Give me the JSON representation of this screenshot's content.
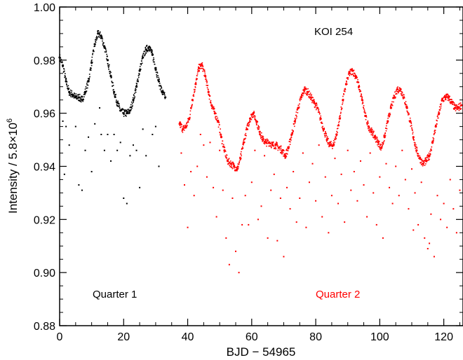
{
  "chart_data": {
    "type": "scatter",
    "xlabel": "BJD − 54965",
    "ylabel": "Intensity / 5.8×10",
    "ylabel_exponent": "6",
    "xlim": [
      0,
      126
    ],
    "ylim": [
      0.88,
      1.0
    ],
    "x_ticks": [
      0,
      20,
      40,
      60,
      80,
      100,
      120
    ],
    "x_tick_labels": [
      "0",
      "20",
      "40",
      "60",
      "80",
      "100",
      "120"
    ],
    "y_ticks": [
      0.88,
      0.9,
      0.92,
      0.94,
      0.96,
      0.98,
      1.0
    ],
    "y_tick_labels": [
      "0.88",
      "0.90",
      "0.92",
      "0.94",
      "0.96",
      "0.98",
      "1.00"
    ],
    "x_minor_step": 5,
    "y_minor_step": 0.005,
    "grid": false,
    "annotations": {
      "object": "KOI 254",
      "quarter1": "Quarter 1",
      "quarter2": "Quarter 2"
    },
    "series": [
      {
        "color": "#000000",
        "points": [
          [
            0.0,
            0.981
          ],
          [
            1.0,
            0.978
          ],
          [
            2.0,
            0.972
          ],
          [
            3.0,
            0.968
          ],
          [
            4.0,
            0.967
          ],
          [
            5.0,
            0.966
          ],
          [
            6.0,
            0.966
          ],
          [
            7.0,
            0.965
          ],
          [
            8.0,
            0.968
          ],
          [
            9.0,
            0.972
          ],
          [
            10.0,
            0.979
          ],
          [
            11.0,
            0.986
          ],
          [
            12.0,
            0.99
          ],
          [
            13.0,
            0.989
          ],
          [
            14.0,
            0.985
          ],
          [
            15.0,
            0.98
          ],
          [
            16.0,
            0.974
          ],
          [
            17.0,
            0.968
          ],
          [
            18.0,
            0.964
          ],
          [
            19.0,
            0.961
          ],
          [
            20.0,
            0.96
          ],
          [
            21.0,
            0.96
          ],
          [
            22.0,
            0.961
          ],
          [
            23.0,
            0.965
          ],
          [
            24.0,
            0.97
          ],
          [
            25.0,
            0.976
          ],
          [
            26.0,
            0.981
          ],
          [
            27.0,
            0.984
          ],
          [
            28.0,
            0.985
          ],
          [
            29.0,
            0.982
          ],
          [
            30.0,
            0.977
          ],
          [
            31.0,
            0.972
          ],
          [
            32.0,
            0.968
          ],
          [
            33.0,
            0.966
          ]
        ],
        "outliers": [
          [
            1,
            0.957
          ],
          [
            2,
            0.955
          ],
          [
            3,
            0.948
          ],
          [
            5,
            0.955
          ],
          [
            6,
            0.933
          ],
          [
            7,
            0.931
          ],
          [
            8,
            0.946
          ],
          [
            9,
            0.951
          ],
          [
            10,
            0.938
          ],
          [
            11,
            0.956
          ],
          [
            13,
            0.952
          ],
          [
            14,
            0.946
          ],
          [
            15,
            0.952
          ],
          [
            16,
            0.942
          ],
          [
            17,
            0.952
          ],
          [
            18,
            0.946
          ],
          [
            19,
            0.949
          ],
          [
            20,
            0.928
          ],
          [
            21,
            0.926
          ],
          [
            22,
            0.944
          ],
          [
            23,
            0.948
          ],
          [
            24,
            0.946
          ],
          [
            25,
            0.932
          ],
          [
            26,
            0.954
          ],
          [
            27,
            0.944
          ],
          [
            29,
            0.952
          ],
          [
            30,
            0.955
          ],
          [
            31,
            0.94
          ],
          [
            1.5,
            0.937
          ],
          [
            12.5,
            0.962
          ]
        ]
      },
      {
        "color": "#ff0000",
        "points": [
          [
            37.5,
            0.956
          ],
          [
            38.5,
            0.954
          ],
          [
            39.5,
            0.955
          ],
          [
            40.5,
            0.958
          ],
          [
            41.5,
            0.965
          ],
          [
            42.5,
            0.971
          ],
          [
            43.5,
            0.977
          ],
          [
            44.5,
            0.978
          ],
          [
            45.5,
            0.974
          ],
          [
            46.5,
            0.968
          ],
          [
            47.5,
            0.963
          ],
          [
            48.5,
            0.96
          ],
          [
            49.5,
            0.957
          ],
          [
            50.5,
            0.951
          ],
          [
            51.5,
            0.946
          ],
          [
            52.5,
            0.942
          ],
          [
            53.5,
            0.941
          ],
          [
            54.5,
            0.94
          ],
          [
            55.5,
            0.939
          ],
          [
            56.5,
            0.943
          ],
          [
            57.5,
            0.949
          ],
          [
            58.5,
            0.954
          ],
          [
            59.5,
            0.958
          ],
          [
            60.5,
            0.96
          ],
          [
            61.5,
            0.957
          ],
          [
            62.5,
            0.953
          ],
          [
            63.5,
            0.95
          ],
          [
            64.5,
            0.949
          ],
          [
            65.5,
            0.949
          ],
          [
            66.5,
            0.948
          ],
          [
            67.5,
            0.948
          ],
          [
            68.5,
            0.947
          ],
          [
            69.5,
            0.946
          ],
          [
            70.5,
            0.944
          ],
          [
            71.5,
            0.947
          ],
          [
            72.5,
            0.952
          ],
          [
            73.5,
            0.957
          ],
          [
            74.5,
            0.962
          ],
          [
            75.5,
            0.966
          ],
          [
            76.5,
            0.969
          ],
          [
            77.5,
            0.968
          ],
          [
            78.5,
            0.966
          ],
          [
            79.5,
            0.964
          ],
          [
            80.5,
            0.962
          ],
          [
            81.5,
            0.958
          ],
          [
            82.5,
            0.954
          ],
          [
            83.5,
            0.95
          ],
          [
            84.5,
            0.948
          ],
          [
            85.5,
            0.948
          ],
          [
            86.5,
            0.952
          ],
          [
            87.5,
            0.958
          ],
          [
            88.5,
            0.965
          ],
          [
            89.5,
            0.971
          ],
          [
            90.5,
            0.975
          ],
          [
            91.5,
            0.976
          ],
          [
            92.5,
            0.974
          ],
          [
            93.5,
            0.97
          ],
          [
            94.5,
            0.965
          ],
          [
            95.5,
            0.959
          ],
          [
            96.5,
            0.955
          ],
          [
            97.5,
            0.953
          ],
          [
            98.5,
            0.951
          ],
          [
            99.5,
            0.949
          ],
          [
            100.5,
            0.947
          ],
          [
            101.5,
            0.951
          ],
          [
            102.5,
            0.957
          ],
          [
            103.5,
            0.962
          ],
          [
            104.5,
            0.966
          ],
          [
            105.5,
            0.969
          ],
          [
            106.5,
            0.969
          ],
          [
            107.5,
            0.966
          ],
          [
            108.5,
            0.962
          ],
          [
            109.5,
            0.957
          ],
          [
            110.5,
            0.951
          ],
          [
            111.5,
            0.946
          ],
          [
            112.5,
            0.943
          ],
          [
            113.5,
            0.941
          ],
          [
            114.5,
            0.942
          ],
          [
            115.5,
            0.944
          ],
          [
            116.5,
            0.949
          ],
          [
            117.5,
            0.955
          ],
          [
            118.5,
            0.96
          ],
          [
            119.5,
            0.965
          ],
          [
            120.5,
            0.966
          ],
          [
            121.5,
            0.966
          ],
          [
            122.5,
            0.964
          ],
          [
            123.5,
            0.962
          ],
          [
            124.5,
            0.962
          ],
          [
            125.5,
            0.963
          ]
        ],
        "outliers": [
          [
            38,
            0.945
          ],
          [
            39,
            0.933
          ],
          [
            40,
            0.917
          ],
          [
            41,
            0.938
          ],
          [
            42,
            0.929
          ],
          [
            43,
            0.94
          ],
          [
            44,
            0.952
          ],
          [
            45,
            0.948
          ],
          [
            46,
            0.936
          ],
          [
            47,
            0.949
          ],
          [
            48,
            0.932
          ],
          [
            49,
            0.921
          ],
          [
            50,
            0.946
          ],
          [
            51,
            0.931
          ],
          [
            52,
            0.913
          ],
          [
            53,
            0.903
          ],
          [
            54,
            0.928
          ],
          [
            55,
            0.908
          ],
          [
            56,
            0.9
          ],
          [
            57,
            0.918
          ],
          [
            58,
            0.929
          ],
          [
            59,
            0.918
          ],
          [
            60,
            0.934
          ],
          [
            61,
            0.946
          ],
          [
            62,
            0.92
          ],
          [
            63,
            0.925
          ],
          [
            64,
            0.944
          ],
          [
            65,
            0.913
          ],
          [
            66,
            0.931
          ],
          [
            67,
            0.937
          ],
          [
            68,
            0.912
          ],
          [
            69,
            0.928
          ],
          [
            70,
            0.906
          ],
          [
            71,
            0.932
          ],
          [
            72,
            0.924
          ],
          [
            73,
            0.938
          ],
          [
            74,
            0.919
          ],
          [
            75,
            0.928
          ],
          [
            76,
            0.945
          ],
          [
            77,
            0.917
          ],
          [
            78,
            0.934
          ],
          [
            79,
            0.941
          ],
          [
            80,
            0.927
          ],
          [
            81,
            0.948
          ],
          [
            82,
            0.921
          ],
          [
            83,
            0.936
          ],
          [
            84,
            0.915
          ],
          [
            85,
            0.929
          ],
          [
            86,
            0.943
          ],
          [
            87,
            0.926
          ],
          [
            88,
            0.937
          ],
          [
            89,
            0.919
          ],
          [
            90,
            0.946
          ],
          [
            91,
            0.931
          ],
          [
            92,
            0.938
          ],
          [
            93,
            0.927
          ],
          [
            94,
            0.942
          ],
          [
            95,
            0.933
          ],
          [
            96,
            0.921
          ],
          [
            97,
            0.945
          ],
          [
            98,
            0.93
          ],
          [
            99,
            0.918
          ],
          [
            100,
            0.936
          ],
          [
            101,
            0.913
          ],
          [
            102,
            0.941
          ],
          [
            103,
            0.932
          ],
          [
            104,
            0.926
          ],
          [
            105,
            0.94
          ],
          [
            106,
            0.929
          ],
          [
            107,
            0.946
          ],
          [
            108,
            0.935
          ],
          [
            109,
            0.924
          ],
          [
            110,
            0.939
          ],
          [
            111,
            0.93
          ],
          [
            112,
            0.918
          ],
          [
            113,
            0.934
          ],
          [
            114,
            0.913
          ],
          [
            115,
            0.909
          ],
          [
            116,
            0.922
          ],
          [
            117,
            0.906
          ],
          [
            118,
            0.929
          ],
          [
            119,
            0.92
          ],
          [
            120,
            0.926
          ],
          [
            121,
            0.917
          ],
          [
            122,
            0.935
          ],
          [
            123,
            0.924
          ],
          [
            124,
            0.915
          ],
          [
            125,
            0.931
          ],
          [
            115.5,
            0.911
          ],
          [
            110.5,
            0.916
          ]
        ]
      }
    ]
  }
}
